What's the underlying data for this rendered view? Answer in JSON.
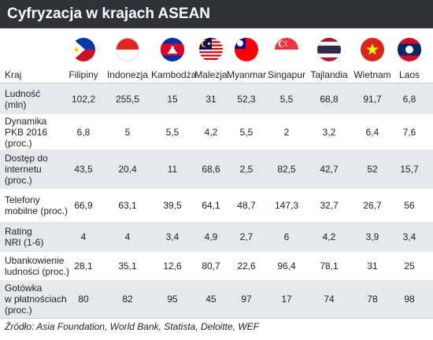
{
  "title": "Cyfryzacja w krajach ASEAN",
  "source": "Źródło: Asia Foundation, World Bank, Statista, Deloitte, WEF",
  "chart_data": {
    "type": "table",
    "header_label": "Kraj",
    "countries": [
      "Filipiny",
      "Indonezja",
      "Kambodża",
      "Malezja",
      "Myanmar",
      "Singapur",
      "Tajlandia",
      "Wietnam",
      "Laos"
    ],
    "flag_icons": [
      "philippines-flag-icon",
      "indonesia-flag-icon",
      "cambodia-flag-icon",
      "malaysia-flag-icon",
      "myanmar-flag-icon",
      "singapore-flag-icon",
      "thailand-flag-icon",
      "vietnam-flag-icon",
      "laos-flag-icon"
    ],
    "rows": [
      {
        "label": [
          "Ludność",
          "(mln)"
        ],
        "values": [
          "102,2",
          "255,5",
          "15",
          "31",
          "52,3",
          "5,5",
          "68,8",
          "91,7",
          "6,8"
        ]
      },
      {
        "label": [
          "Dynamika",
          "PKB 2016",
          "(proc.)"
        ],
        "values": [
          "6,8",
          "5",
          "5,5",
          "4,2",
          "5,5",
          "2",
          "3,2",
          "6,4",
          "7,6"
        ]
      },
      {
        "label": [
          "Dostęp do",
          "internetu",
          "(proc.)"
        ],
        "values": [
          "43,5",
          "20,4",
          "11",
          "68,6",
          "2,5",
          "82,5",
          "42,7",
          "52",
          "15,7"
        ]
      },
      {
        "label": [
          "Telefony",
          "mobilne (proc.)"
        ],
        "values": [
          "66,9",
          "63,1",
          "39,5",
          "64,1",
          "48,7",
          "147,3",
          "32,7",
          "26,7",
          "56"
        ]
      },
      {
        "label": [
          "Rating",
          "NRI (1-6)"
        ],
        "values": [
          "4",
          "4",
          "3,4",
          "4,9",
          "2,7",
          "6",
          "4,2",
          "3,9",
          "3,4"
        ]
      },
      {
        "label": [
          "Ubankowienie",
          "ludności (proc.)"
        ],
        "values": [
          "28,1",
          "35,1",
          "12,6",
          "80,7",
          "22,6",
          "96,4",
          "78,1",
          "31",
          "25"
        ]
      },
      {
        "label": [
          "Gotówka",
          "w płatnościach",
          "(proc.)"
        ],
        "values": [
          "80",
          "82",
          "95",
          "45",
          "97",
          "17",
          "74",
          "78",
          "98"
        ]
      }
    ]
  }
}
